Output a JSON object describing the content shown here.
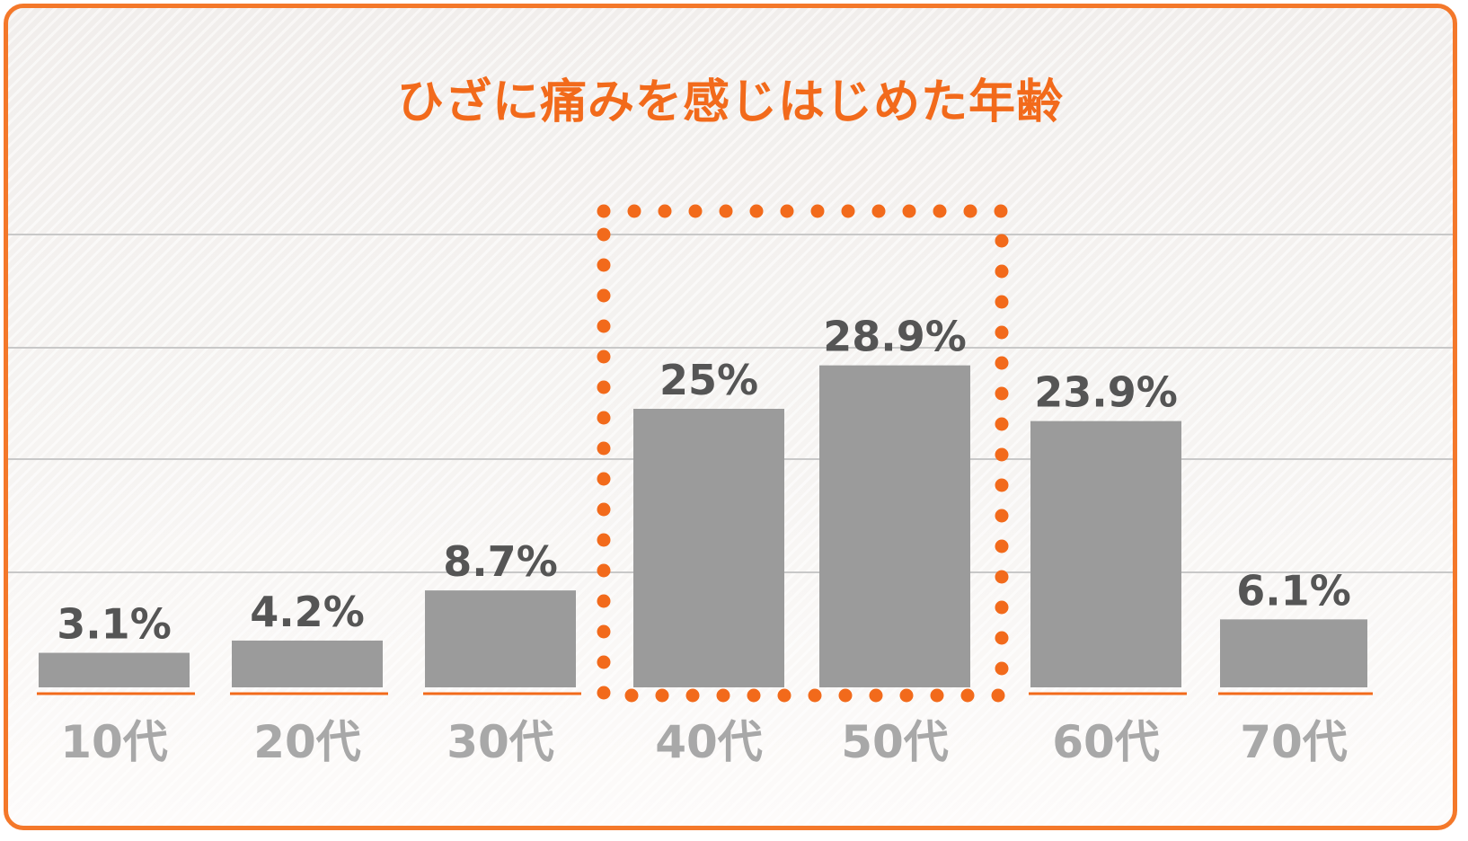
{
  "chart_data": {
    "type": "bar",
    "title": "ひざに痛みを感じはじめた年齢",
    "categories": [
      "10代",
      "20代",
      "30代",
      "40代",
      "50代",
      "60代",
      "70代"
    ],
    "values": [
      3.1,
      4.2,
      8.7,
      25,
      28.9,
      23.9,
      6.1
    ],
    "value_labels": [
      "3.1%",
      "4.2%",
      "8.7%",
      "25%",
      "28.9%",
      "23.9%",
      "6.1%"
    ],
    "highlight_categories": [
      "40代",
      "50代"
    ],
    "ylim": [
      0,
      40
    ],
    "grid": true,
    "legend": "none",
    "colors": {
      "bar": "#9b9b9b",
      "accent": "#f26a1b",
      "grid": "#c8c8c8",
      "tick_text": "#a8a8a8",
      "value_text": "#555555"
    }
  }
}
